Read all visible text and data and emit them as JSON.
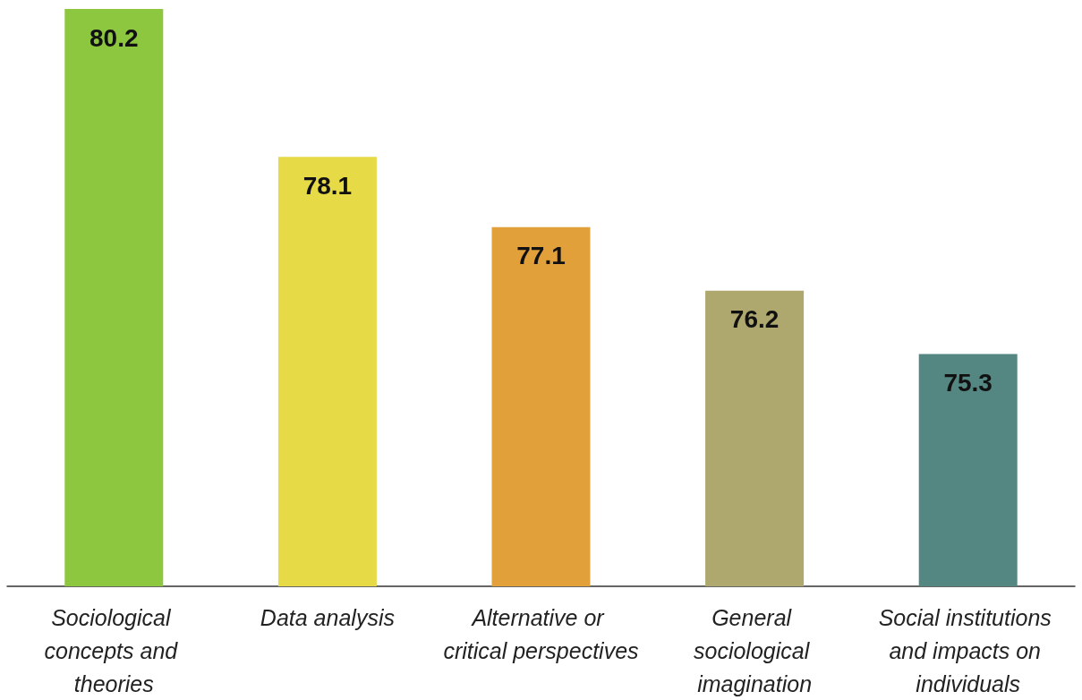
{
  "chart_data": {
    "type": "bar",
    "categories": [
      "Sociological concepts and theories",
      "Data analysis",
      "Alternative or critical perspectives",
      "General sociological imagination",
      "Social institutions and impacts on individuals"
    ],
    "values": [
      80.2,
      78.1,
      77.1,
      76.2,
      75.3
    ],
    "colors": [
      "#8dc63f",
      "#e6da47",
      "#e2a03a",
      "#afa86e",
      "#548782"
    ],
    "ylim": [
      72,
      80.2
    ],
    "data_labels": true
  }
}
